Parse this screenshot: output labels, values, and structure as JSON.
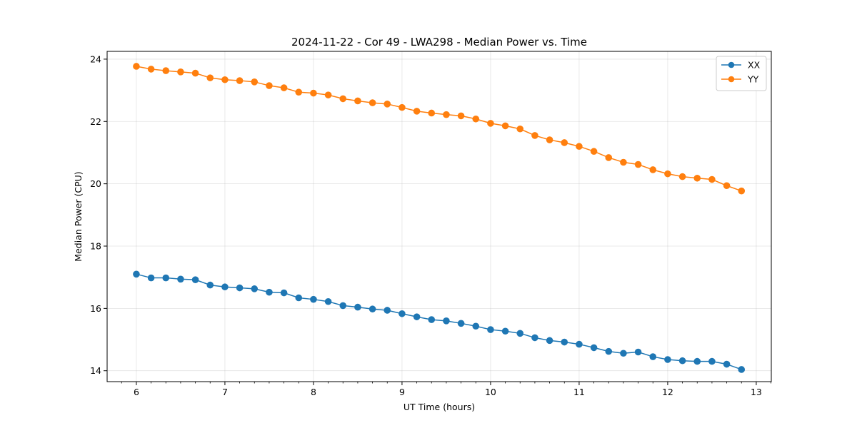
{
  "chart_data": {
    "type": "line",
    "title": "2024-11-22 - Cor 49 - LWA298 - Median Power vs. Time",
    "xlabel": "UT Time (hours)",
    "ylabel": "Median Power (CPU)",
    "xlim": [
      5.67,
      13.17
    ],
    "ylim": [
      13.65,
      24.25
    ],
    "xticks": [
      6,
      7,
      8,
      9,
      10,
      11,
      12,
      13
    ],
    "yticks": [
      14,
      16,
      18,
      20,
      22,
      24
    ],
    "grid": true,
    "legend_position": "top-right",
    "x": [
      6.0,
      6.1667,
      6.3333,
      6.5,
      6.6667,
      6.8333,
      7.0,
      7.1667,
      7.3333,
      7.5,
      7.6667,
      7.8333,
      8.0,
      8.1667,
      8.3333,
      8.5,
      8.6667,
      8.8333,
      9.0,
      9.1667,
      9.3333,
      9.5,
      9.6667,
      9.8333,
      10.0,
      10.1667,
      10.3333,
      10.5,
      10.6667,
      10.8333,
      11.0,
      11.1667,
      11.3333,
      11.5,
      11.6667,
      11.8333,
      12.0,
      12.1667,
      12.3333,
      12.5,
      12.6667,
      12.8333
    ],
    "series": [
      {
        "name": "XX",
        "color": "#1f77b4",
        "values": [
          17.1,
          16.98,
          16.98,
          16.94,
          16.92,
          16.75,
          16.69,
          16.66,
          16.63,
          16.52,
          16.5,
          16.34,
          16.29,
          16.22,
          16.09,
          16.04,
          15.98,
          15.94,
          15.83,
          15.73,
          15.64,
          15.6,
          15.52,
          15.43,
          15.32,
          15.27,
          15.2,
          15.06,
          14.97,
          14.92,
          14.85,
          14.74,
          14.62,
          14.56,
          14.6,
          14.45,
          14.36,
          14.32,
          14.3,
          14.3,
          14.21,
          14.04
        ]
      },
      {
        "name": "YY",
        "color": "#ff7f0e",
        "values": [
          23.77,
          23.68,
          23.63,
          23.59,
          23.55,
          23.4,
          23.34,
          23.31,
          23.27,
          23.15,
          23.08,
          22.94,
          22.91,
          22.85,
          22.73,
          22.66,
          22.6,
          22.56,
          22.45,
          22.33,
          22.27,
          22.22,
          22.18,
          22.08,
          21.94,
          21.86,
          21.76,
          21.55,
          21.41,
          21.32,
          21.2,
          21.04,
          20.84,
          20.69,
          20.62,
          20.45,
          20.32,
          20.23,
          20.18,
          20.14,
          19.94,
          19.77
        ]
      }
    ]
  }
}
